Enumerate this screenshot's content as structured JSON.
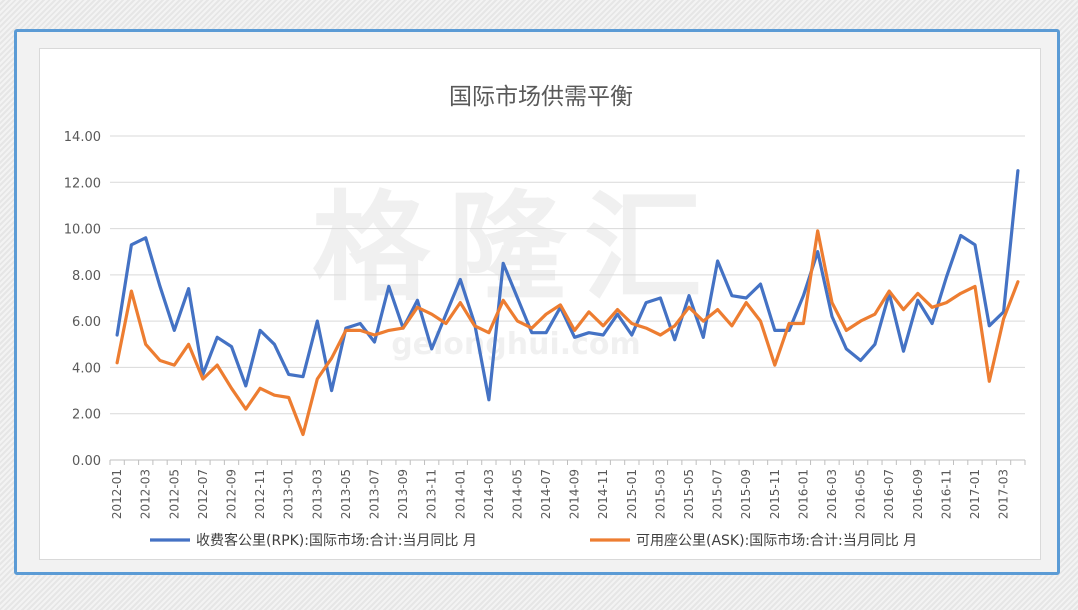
{
  "chart_data": {
    "type": "line",
    "title": "国际市场供需平衡",
    "watermark": "格隆汇",
    "watermark_url": "gelonghui.com",
    "ylim": [
      0,
      14
    ],
    "yticks": [
      "0.00",
      "2.00",
      "4.00",
      "6.00",
      "8.00",
      "10.00",
      "12.00",
      "14.00"
    ],
    "x": [
      "2012-01",
      "2012-02",
      "2012-03",
      "2012-04",
      "2012-05",
      "2012-06",
      "2012-07",
      "2012-08",
      "2012-09",
      "2012-10",
      "2012-11",
      "2012-12",
      "2013-01",
      "2013-02",
      "2013-03",
      "2013-04",
      "2013-05",
      "2013-06",
      "2013-07",
      "2013-08",
      "2013-09",
      "2013-10",
      "2013-11",
      "2013-12",
      "2014-01",
      "2014-02",
      "2014-03",
      "2014-04",
      "2014-05",
      "2014-06",
      "2014-07",
      "2014-08",
      "2014-09",
      "2014-10",
      "2014-11",
      "2014-12",
      "2015-01",
      "2015-02",
      "2015-03",
      "2015-04",
      "2015-05",
      "2015-06",
      "2015-07",
      "2015-08",
      "2015-09",
      "2015-10",
      "2015-11",
      "2015-12",
      "2016-01",
      "2016-02",
      "2016-03",
      "2016-04",
      "2016-05",
      "2016-06",
      "2016-07",
      "2016-08",
      "2016-09",
      "2016-10",
      "2016-11",
      "2016-12",
      "2017-01",
      "2017-02",
      "2017-03",
      "2017-04"
    ],
    "xtick_labels": [
      "2012-01",
      "2012-03",
      "2012-05",
      "2012-07",
      "2012-09",
      "2012-11",
      "2013-01",
      "2013-03",
      "2013-05",
      "2013-07",
      "2013-09",
      "2013-11",
      "2014-01",
      "2014-03",
      "2014-05",
      "2014-07",
      "2014-09",
      "2014-11",
      "2015-01",
      "2015-03",
      "2015-05",
      "2015-07",
      "2015-09",
      "2015-11",
      "2016-01",
      "2016-03",
      "2016-05",
      "2016-07",
      "2016-09",
      "2016-11",
      "2017-01",
      "2017-03"
    ],
    "series": [
      {
        "name": "收费客公里(RPK):国际市场:合计:当月同比 月",
        "color": "#4472c4",
        "values": [
          5.4,
          9.3,
          9.6,
          7.5,
          5.6,
          7.4,
          3.7,
          5.3,
          4.9,
          3.2,
          5.6,
          5.0,
          3.7,
          3.6,
          6.0,
          3.0,
          5.7,
          5.9,
          5.1,
          7.5,
          5.7,
          6.9,
          4.8,
          6.3,
          7.8,
          5.9,
          2.6,
          8.5,
          7.0,
          5.5,
          5.5,
          6.6,
          5.3,
          5.5,
          5.4,
          6.3,
          5.4,
          6.8,
          7.0,
          5.2,
          7.1,
          5.3,
          8.6,
          7.1,
          7.0,
          7.6,
          5.6,
          5.6,
          7.1,
          9.0,
          6.2,
          4.8,
          4.3,
          5.0,
          7.2,
          4.7,
          6.9,
          5.9,
          7.9,
          9.7,
          9.3,
          5.8,
          6.4,
          12.5
        ]
      },
      {
        "name": "可用座公里(ASK):国际市场:合计:当月同比 月",
        "color": "#ed7d31",
        "values": [
          4.2,
          7.3,
          5.0,
          4.3,
          4.1,
          5.0,
          3.5,
          4.1,
          3.1,
          2.2,
          3.1,
          2.8,
          2.7,
          1.1,
          3.5,
          4.4,
          5.6,
          5.6,
          5.4,
          5.6,
          5.7,
          6.6,
          6.3,
          5.9,
          6.8,
          5.8,
          5.5,
          6.9,
          6.0,
          5.7,
          6.3,
          6.7,
          5.6,
          6.4,
          5.8,
          6.5,
          5.9,
          5.7,
          5.4,
          5.8,
          6.6,
          6.0,
          6.5,
          5.8,
          6.8,
          6.0,
          4.1,
          5.9,
          5.9,
          9.9,
          6.8,
          5.6,
          6.0,
          6.3,
          7.3,
          6.5,
          7.2,
          6.6,
          6.8,
          7.2,
          7.5,
          3.4,
          6.1,
          7.7
        ]
      }
    ],
    "legend_position": "bottom",
    "grid": true
  }
}
